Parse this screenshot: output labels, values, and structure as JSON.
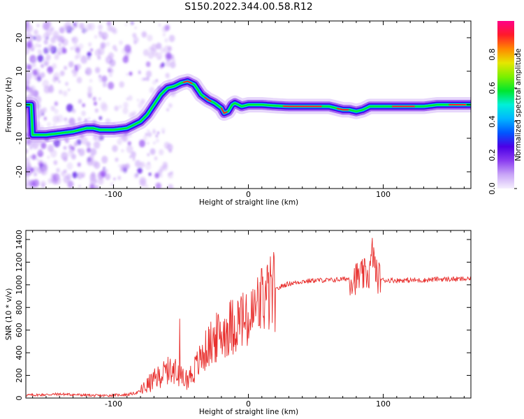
{
  "title": "S150.2022.344.00.58.R12",
  "colors": {
    "snr_line": "#e8302e",
    "axis": "#000000",
    "colormap": [
      "#f6f0fe",
      "#c9a6f7",
      "#8a3cf0",
      "#4b00e6",
      "#0057ff",
      "#00b6ff",
      "#00f0d8",
      "#00e62e",
      "#7bf000",
      "#e6e600",
      "#ff8800",
      "#ff1a2a",
      "#ff0088"
    ]
  },
  "chart_data": [
    {
      "type": "heatmap",
      "xlabel": "Height of straight line (km)",
      "ylabel": "Frequency (Hz)",
      "xlim": [
        -165,
        165
      ],
      "ylim": [
        -25,
        25
      ],
      "xticks": [
        -100,
        0,
        100
      ],
      "yticks": [
        -20,
        -10,
        0,
        10,
        20
      ],
      "colorbar": {
        "label": "Normalized spectral amplitude",
        "range": [
          0,
          1
        ],
        "ticks": [
          "0.0",
          "0.2",
          "0.4",
          "0.6",
          "0.8"
        ]
      },
      "ridge": {
        "x": [
          -160,
          -150,
          -140,
          -130,
          -120,
          -115,
          -110,
          -100,
          -90,
          -85,
          -80,
          -75,
          -70,
          -65,
          -60,
          -55,
          -50,
          -45,
          -40,
          -35,
          -30,
          -25,
          -20,
          -18,
          -15,
          -12,
          -10,
          -5,
          0,
          10,
          20,
          30,
          40,
          50,
          60,
          65,
          70,
          75,
          80,
          85,
          90,
          95,
          100,
          110,
          120,
          130,
          140,
          150,
          160,
          165
        ],
        "y": [
          -9,
          -9,
          -8.5,
          -8,
          -7,
          -7,
          -7.5,
          -7.5,
          -7,
          -6,
          -5,
          -3,
          0,
          3,
          5,
          5.5,
          6.5,
          7,
          6,
          3,
          1.5,
          0.5,
          -1,
          -2.5,
          -2,
          0,
          0.5,
          -0.5,
          0,
          0,
          -0.3,
          -0.5,
          -0.5,
          -0.5,
          -0.5,
          -1,
          -1.5,
          -1.5,
          -2,
          -1.5,
          -0.5,
          -0.5,
          -0.5,
          -0.5,
          -0.5,
          -0.5,
          0,
          0,
          0,
          0
        ]
      }
    },
    {
      "type": "line",
      "xlabel": "Height of straight line (km)",
      "ylabel": "SNR (10 * v/v)",
      "xlim": [
        -165,
        165
      ],
      "ylim": [
        0,
        1480
      ],
      "xticks": [
        -100,
        0,
        100
      ],
      "yticks": [
        0,
        200,
        400,
        600,
        800,
        1000,
        1200,
        1400
      ],
      "series": [
        {
          "x": [
            -165,
            -150,
            -140,
            -130,
            -120,
            -110,
            -100,
            -90,
            -85,
            -80,
            -75,
            -70,
            -65,
            -60,
            -55,
            -50,
            -45,
            -40,
            -35,
            -30,
            -25,
            -20,
            -15,
            -10,
            -5,
            0,
            5,
            10,
            15,
            20,
            25,
            30,
            40,
            50,
            60,
            70,
            80,
            85,
            90,
            92,
            95,
            100,
            110,
            120,
            130,
            140,
            150,
            160,
            165
          ],
          "values": [
            25,
            30,
            35,
            30,
            25,
            20,
            25,
            30,
            40,
            60,
            110,
            160,
            200,
            240,
            250,
            180,
            170,
            250,
            350,
            450,
            520,
            560,
            620,
            650,
            700,
            640,
            780,
            860,
            900,
            950,
            990,
            1010,
            1030,
            1040,
            1040,
            1050,
            1060,
            1080,
            1100,
            1300,
            1080,
            1040,
            1040,
            1040,
            1040,
            1050,
            1050,
            1050,
            1050
          ]
        }
      ]
    }
  ]
}
